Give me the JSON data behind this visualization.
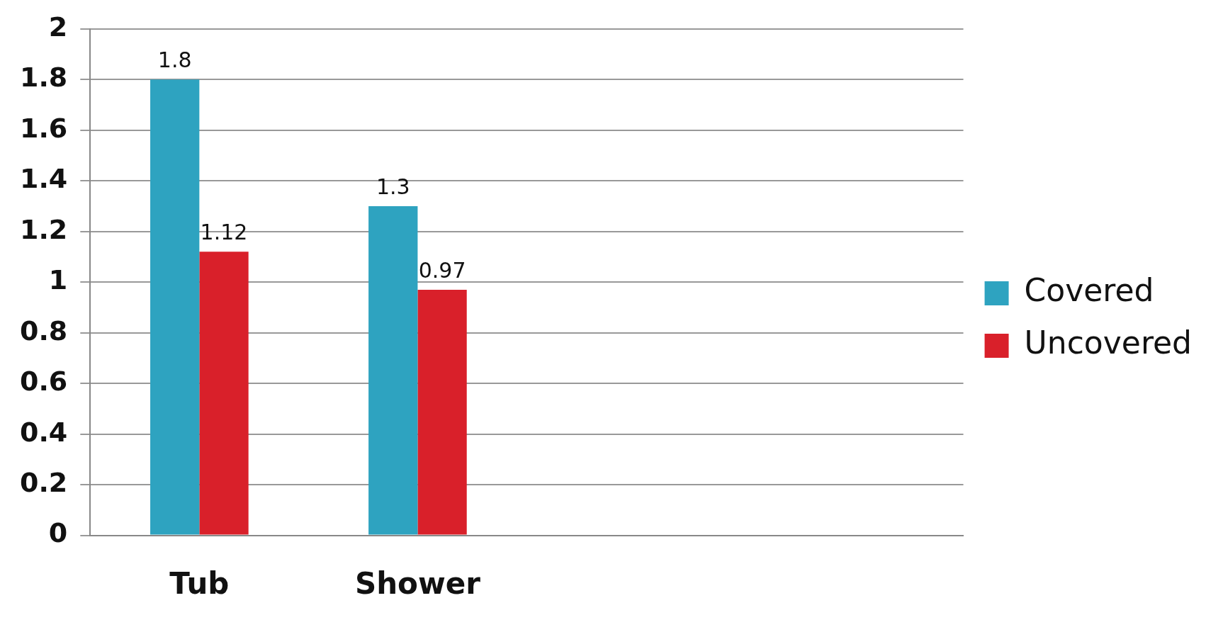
{
  "chart_data": {
    "type": "bar",
    "categories": [
      "Tub",
      "Shower",
      null,
      null
    ],
    "series": [
      {
        "name": "Covered",
        "color": "#2ea3c0",
        "values": [
          1.8,
          1.3,
          null,
          null
        ]
      },
      {
        "name": "Uncovered",
        "color": "#d9202a",
        "values": [
          1.12,
          0.97,
          null,
          null
        ]
      }
    ],
    "ylim": [
      0,
      2
    ],
    "yticks": [
      0,
      0.2,
      0.4,
      0.6,
      0.8,
      1,
      1.2,
      1.4,
      1.6,
      1.8,
      2
    ],
    "grid": "y",
    "legend": "right",
    "data_labels": true
  }
}
